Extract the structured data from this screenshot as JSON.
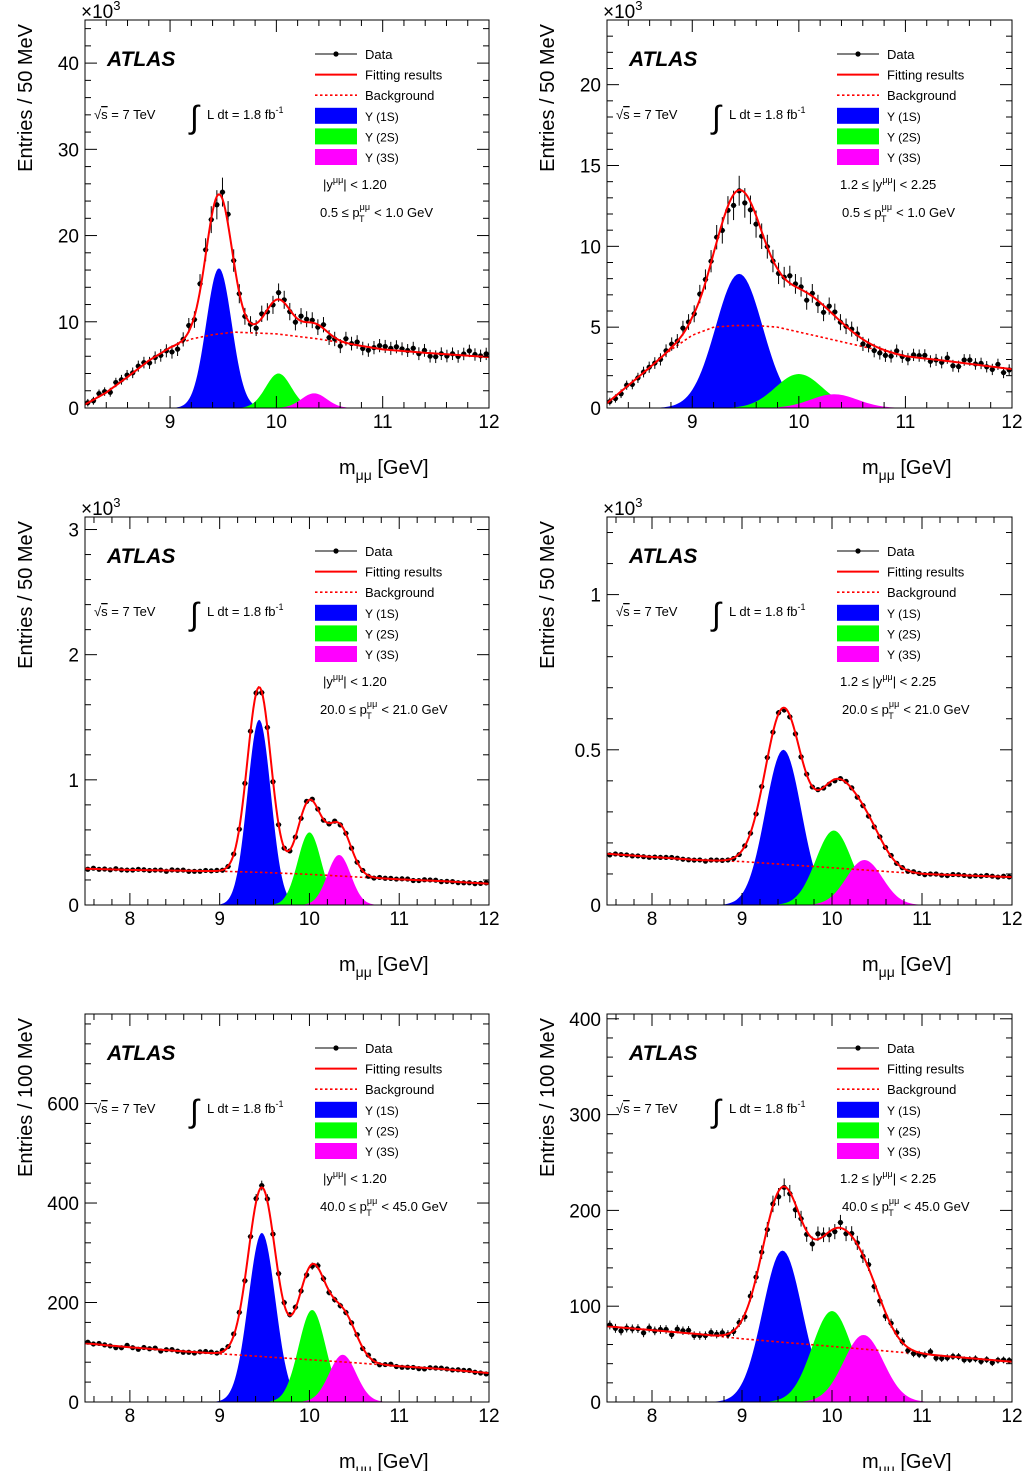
{
  "legend": {
    "data": "Data",
    "fit": "Fitting results",
    "background": "Background",
    "y1s": "Υ (1S)",
    "y2s": "Υ (2S)",
    "y3s": "Υ (3S)"
  },
  "labels": {
    "atlas": "ATLAS",
    "energy_prefix": "√",
    "energy_s": "s",
    "energy_rest": " = 7 TeV",
    "integral": "∫",
    "lumi_text": "L dt = 1.8 fb",
    "lumi_exp": "-1",
    "scale_base": "×10",
    "scale_exp": "3",
    "xlabel_m": "m",
    "xlabel_sub": "μμ",
    "xlabel_unit": " [GeV]"
  },
  "colors": {
    "y1s": "#0000ff",
    "y2s": "#00ff00",
    "y3s": "#ff00ff",
    "fit": "#ff0000",
    "background": "#ff0000",
    "data": "#000000"
  },
  "chart_data": [
    {
      "id": "A",
      "type": "line",
      "ylabel": "Entries / 50 MeV",
      "xlabel": "mμμ [GeV]",
      "scale_label": "×10^3",
      "xlim": [
        8.2,
        12
      ],
      "ylim": [
        0,
        45
      ],
      "xticks": [
        9,
        10,
        11,
        12
      ],
      "yticks": [
        0,
        10,
        20,
        30,
        40
      ],
      "cut_y": "|y^μμ| < 1.20",
      "cut_pt": "0.5 ≤ pT^μμ < 1.0 GeV",
      "cut_y_parts": [
        "|y",
        "μμ",
        "| < 1.20"
      ],
      "cut_pt_parts": [
        "0.5 ≤ p",
        "μμ",
        "T",
        " < 1.0 GeV"
      ],
      "peaks": [
        {
          "name": "Υ (1S)",
          "amplitude": 16.2,
          "mean": 9.46,
          "sigma": 0.12
        },
        {
          "name": "Υ (2S)",
          "amplitude": 4.0,
          "mean": 10.02,
          "sigma": 0.12
        },
        {
          "name": "Υ (3S)",
          "amplitude": 1.7,
          "mean": 10.355,
          "sigma": 0.12
        }
      ],
      "background_points": [
        [
          8.2,
          0.4
        ],
        [
          8.4,
          1.8
        ],
        [
          8.6,
          3.6
        ],
        [
          8.8,
          5.5
        ],
        [
          9.0,
          7.0
        ],
        [
          9.2,
          8.0
        ],
        [
          9.4,
          8.5
        ],
        [
          9.6,
          8.8
        ],
        [
          9.8,
          8.7
        ],
        [
          10.0,
          8.6
        ],
        [
          10.2,
          8.3
        ],
        [
          10.4,
          8.0
        ],
        [
          10.6,
          7.6
        ],
        [
          10.8,
          7.2
        ],
        [
          11.0,
          6.8
        ],
        [
          11.4,
          6.4
        ],
        [
          12.0,
          5.9
        ]
      ],
      "error_size": 0.15,
      "data_seed": 1
    },
    {
      "id": "B",
      "type": "line",
      "ylabel": "Entries / 50 MeV",
      "xlabel": "mμμ [GeV]",
      "scale_label": "×10^3",
      "xlim": [
        8.2,
        12
      ],
      "ylim": [
        0,
        24
      ],
      "xticks": [
        9,
        10,
        11,
        12
      ],
      "yticks": [
        0,
        5,
        10,
        15,
        20
      ],
      "cut_y": "1.2 ≤ |y^μμ| < 2.25",
      "cut_pt": "0.5 ≤ pT^μμ < 1.0 GeV",
      "cut_y_parts": [
        "1.2 ≤ |y",
        "μμ",
        "| < 2.25"
      ],
      "cut_pt_parts": [
        "0.5 ≤ p",
        "μμ",
        "T",
        " < 1.0 GeV"
      ],
      "peaks": [
        {
          "name": "Υ (1S)",
          "amplitude": 8.3,
          "mean": 9.44,
          "sigma": 0.22
        },
        {
          "name": "Υ (2S)",
          "amplitude": 2.1,
          "mean": 10.0,
          "sigma": 0.22
        },
        {
          "name": "Υ (3S)",
          "amplitude": 0.85,
          "mean": 10.33,
          "sigma": 0.22
        }
      ],
      "background_points": [
        [
          8.2,
          0.3
        ],
        [
          8.4,
          1.4
        ],
        [
          8.6,
          2.5
        ],
        [
          8.8,
          3.6
        ],
        [
          9.0,
          4.5
        ],
        [
          9.2,
          5.0
        ],
        [
          9.4,
          5.1
        ],
        [
          9.6,
          5.1
        ],
        [
          9.8,
          5.0
        ],
        [
          10.0,
          4.7
        ],
        [
          10.2,
          4.4
        ],
        [
          10.4,
          4.1
        ],
        [
          10.6,
          3.8
        ],
        [
          10.8,
          3.5
        ],
        [
          11.0,
          3.2
        ],
        [
          11.4,
          2.9
        ],
        [
          12.0,
          2.4
        ]
      ],
      "error_size": 0.15,
      "data_seed": 2
    },
    {
      "id": "C",
      "type": "line",
      "ylabel": "Entries / 50 MeV",
      "xlabel": "mμμ [GeV]",
      "scale_label": "×10^3",
      "xlim": [
        7.5,
        12
      ],
      "ylim": [
        0,
        3.1
      ],
      "xticks": [
        8,
        9,
        10,
        11,
        12
      ],
      "yticks": [
        0,
        1,
        2,
        3
      ],
      "cut_y": "|y^μμ| < 1.20",
      "cut_pt": "20.0 ≤ pT^μμ < 21.0 GeV",
      "cut_y_parts": [
        "|y",
        "μμ",
        "| < 1.20"
      ],
      "cut_pt_parts": [
        "20.0 ≤ p",
        "μμ",
        "T",
        " < 21.0 GeV"
      ],
      "peaks": [
        {
          "name": "Υ (1S)",
          "amplitude": 1.48,
          "mean": 9.44,
          "sigma": 0.13
        },
        {
          "name": "Υ (2S)",
          "amplitude": 0.58,
          "mean": 10.0,
          "sigma": 0.13
        },
        {
          "name": "Υ (3S)",
          "amplitude": 0.4,
          "mean": 10.33,
          "sigma": 0.13
        }
      ],
      "background_points": [
        [
          7.5,
          0.29
        ],
        [
          8.0,
          0.28
        ],
        [
          8.5,
          0.275
        ],
        [
          9.0,
          0.27
        ],
        [
          9.5,
          0.26
        ],
        [
          10.0,
          0.245
        ],
        [
          10.5,
          0.225
        ],
        [
          11.0,
          0.205
        ],
        [
          11.5,
          0.19
        ],
        [
          12.0,
          0.17
        ]
      ],
      "error_size": 0.03,
      "data_seed": 3
    },
    {
      "id": "D",
      "type": "line",
      "ylabel": "Entries / 50 MeV",
      "xlabel": "mμμ [GeV]",
      "scale_label": "×10^3",
      "xlim": [
        7.5,
        12
      ],
      "ylim": [
        0,
        1.25
      ],
      "xticks": [
        8,
        9,
        10,
        11,
        12
      ],
      "yticks": [
        0,
        0.5,
        1
      ],
      "cut_y": "1.2 ≤ |y^μμ| < 2.25",
      "cut_pt": "20.0 ≤ pT^μμ < 21.0 GeV",
      "cut_y_parts": [
        "1.2 ≤ |y",
        "μμ",
        "| < 2.25"
      ],
      "cut_pt_parts": [
        "20.0 ≤ p",
        "μμ",
        "T",
        " < 21.0 GeV"
      ],
      "peaks": [
        {
          "name": "Υ (1S)",
          "amplitude": 0.5,
          "mean": 9.46,
          "sigma": 0.2
        },
        {
          "name": "Υ (2S)",
          "amplitude": 0.24,
          "mean": 10.02,
          "sigma": 0.2
        },
        {
          "name": "Υ (3S)",
          "amplitude": 0.145,
          "mean": 10.36,
          "sigma": 0.2
        }
      ],
      "background_points": [
        [
          7.5,
          0.165
        ],
        [
          8.0,
          0.155
        ],
        [
          8.5,
          0.145
        ],
        [
          9.0,
          0.14
        ],
        [
          9.5,
          0.13
        ],
        [
          10.0,
          0.12
        ],
        [
          10.5,
          0.11
        ],
        [
          11.0,
          0.1
        ],
        [
          11.5,
          0.095
        ],
        [
          12.0,
          0.09
        ]
      ],
      "error_size": 0.03,
      "data_seed": 4
    },
    {
      "id": "E",
      "type": "line",
      "ylabel": "Entries / 100 MeV",
      "xlabel": "mμμ [GeV]",
      "scale_label": "",
      "xlim": [
        7.5,
        12
      ],
      "ylim": [
        0,
        780
      ],
      "xticks": [
        8,
        9,
        10,
        11,
        12
      ],
      "yticks": [
        0,
        200,
        400,
        600
      ],
      "cut_y": "|y^μμ| < 1.20",
      "cut_pt": "40.0 ≤ pT^μμ < 45.0 GeV",
      "cut_y_parts": [
        "|y",
        "μμ",
        "| < 1.20"
      ],
      "cut_pt_parts": [
        "40.0 ≤ p",
        "μμ",
        "T",
        " < 45.0 GeV"
      ],
      "peaks": [
        {
          "name": "Υ (1S)",
          "amplitude": 340,
          "mean": 9.47,
          "sigma": 0.15
        },
        {
          "name": "Υ (2S)",
          "amplitude": 185,
          "mean": 10.03,
          "sigma": 0.15
        },
        {
          "name": "Υ (3S)",
          "amplitude": 95,
          "mean": 10.37,
          "sigma": 0.15
        }
      ],
      "background_points": [
        [
          7.5,
          118
        ],
        [
          8.0,
          110
        ],
        [
          8.5,
          103
        ],
        [
          9.0,
          97
        ],
        [
          9.5,
          91
        ],
        [
          10.0,
          85
        ],
        [
          10.5,
          79
        ],
        [
          11.0,
          72
        ],
        [
          11.5,
          66
        ],
        [
          12.0,
          58
        ]
      ],
      "error_size": 0.05,
      "data_seed": 5
    },
    {
      "id": "F",
      "type": "line",
      "ylabel": "Entries / 100 MeV",
      "xlabel": "mμμ [GeV]",
      "scale_label": "",
      "xlim": [
        7.5,
        12
      ],
      "ylim": [
        0,
        405
      ],
      "xticks": [
        8,
        9,
        10,
        11,
        12
      ],
      "yticks": [
        0,
        100,
        200,
        300,
        400
      ],
      "cut_y": "1.2 ≤ |y^μμ| < 2.25",
      "cut_pt": "40.0 ≤ pT^μμ < 45.0 GeV",
      "cut_y_parts": [
        "1.2 ≤ |y",
        "μμ",
        "| < 2.25"
      ],
      "cut_pt_parts": [
        "40.0 ≤ p",
        "μμ",
        "T",
        " < 45.0 GeV"
      ],
      "peaks": [
        {
          "name": "Υ (1S)",
          "amplitude": 158,
          "mean": 9.45,
          "sigma": 0.22
        },
        {
          "name": "Υ (2S)",
          "amplitude": 95,
          "mean": 10.0,
          "sigma": 0.22
        },
        {
          "name": "Υ (3S)",
          "amplitude": 70,
          "mean": 10.35,
          "sigma": 0.22
        }
      ],
      "background_points": [
        [
          7.5,
          79
        ],
        [
          8.0,
          75
        ],
        [
          8.5,
          71
        ],
        [
          9.0,
          66
        ],
        [
          9.5,
          62
        ],
        [
          10.0,
          58
        ],
        [
          10.5,
          54
        ],
        [
          11.0,
          50
        ],
        [
          11.5,
          46
        ],
        [
          12.0,
          42
        ]
      ],
      "error_size": 0.09,
      "data_seed": 6
    }
  ]
}
